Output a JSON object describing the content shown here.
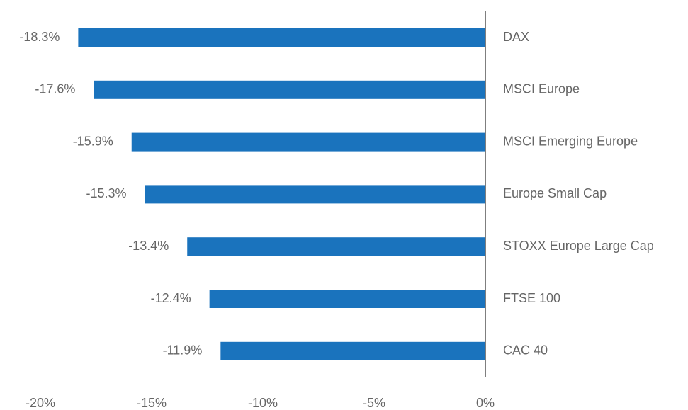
{
  "chart_data": {
    "type": "bar",
    "orientation": "horizontal",
    "categories": [
      "DAX",
      "MSCI Europe",
      "MSCI Emerging Europe",
      "Europe Small Cap",
      "STOXX Europe Large Cap",
      "FTSE 100",
      "CAC 40"
    ],
    "values": [
      -18.3,
      -17.6,
      -15.9,
      -15.3,
      -13.4,
      -12.4,
      -11.9
    ],
    "value_labels": [
      "-18.3%",
      "-17.6%",
      "-15.9%",
      "-15.3%",
      "-13.4%",
      "-12.4%",
      "-11.9%"
    ],
    "color": "#1a73bd",
    "xlim": [
      -20,
      0
    ],
    "xticks": [
      {
        "value": -20,
        "label": "-20%"
      },
      {
        "value": -15,
        "label": "-15%"
      },
      {
        "value": -10,
        "label": "-10%"
      },
      {
        "value": -5,
        "label": "-5%"
      },
      {
        "value": 0,
        "label": "0%"
      }
    ],
    "grid": false
  }
}
